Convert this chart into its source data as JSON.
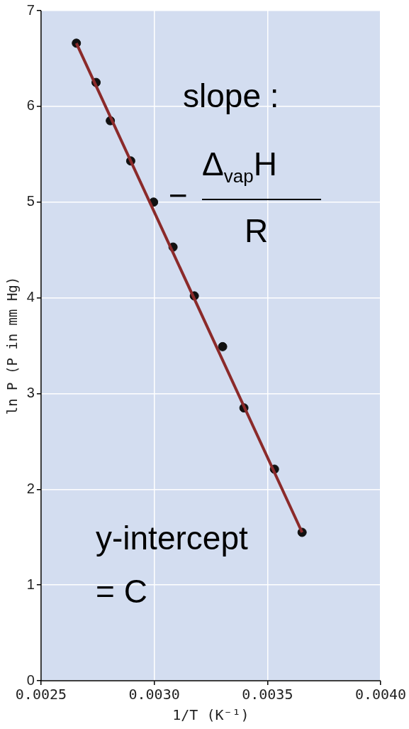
{
  "chart_data": {
    "type": "scatter",
    "xlabel": "1/T (K⁻¹)",
    "ylabel": "ln P (P in mm Hg)",
    "series": [
      {
        "color": "#111111",
        "x": [
          0.002656,
          0.002743,
          0.002806,
          0.002896,
          0.002997,
          0.003083,
          0.003177,
          0.003302,
          0.003396,
          0.003531,
          0.003653
        ],
        "values": [
          6.66,
          6.25,
          5.85,
          5.43,
          5.0,
          4.53,
          4.02,
          3.49,
          2.85,
          2.21,
          1.55
        ]
      },
      {
        "type": "line",
        "marker": "none",
        "color": "#8b2a2a",
        "x": [
          0.002656,
          0.003653
        ],
        "values": [
          6.66,
          1.55
        ]
      }
    ],
    "xlim": [
      0.0025,
      0.004
    ],
    "xticks": [
      {
        "value": 0.0025,
        "label": "0.0025"
      },
      {
        "value": 0.003,
        "label": "0.0030"
      },
      {
        "value": 0.0035,
        "label": "0.0035"
      },
      {
        "value": 0.004,
        "label": "0.0040"
      }
    ],
    "ylim": [
      0,
      7
    ],
    "yticks": [
      0,
      1,
      2,
      3,
      4,
      5,
      6,
      7
    ],
    "grid": true,
    "legend": false,
    "marker": "circle",
    "line_style": "solid",
    "annotations": [
      "slope :",
      "−",
      "Δ$_{vap}$H",
      "R",
      "y-intercept",
      "= C"
    ]
  }
}
